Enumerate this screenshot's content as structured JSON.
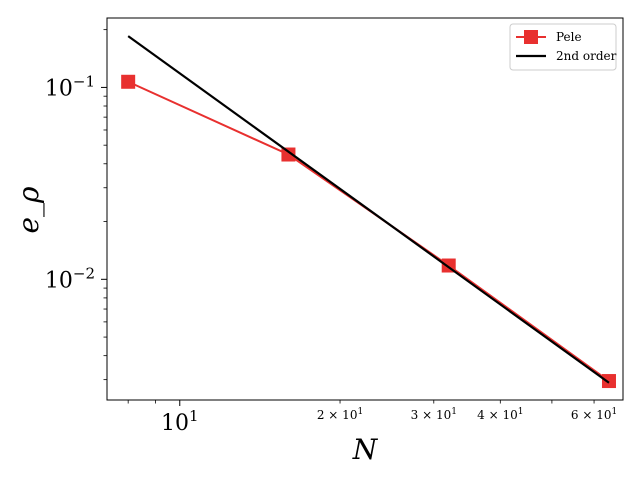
{
  "chart_data": {
    "type": "line",
    "xscale": "log",
    "yscale": "log",
    "xlim": [
      7.3,
      68
    ],
    "ylim": [
      0.00235,
      0.23
    ],
    "xlabel": "N",
    "ylabel": "e_ρ",
    "legend_position": "top-right",
    "grid": false,
    "x_major_ticks": [
      {
        "value": 10,
        "label": "10",
        "exp": "1"
      }
    ],
    "x_minor_ticks": [
      {
        "value": 20,
        "label": "2 × 10",
        "exp": "1"
      },
      {
        "value": 30,
        "label": "3 × 10",
        "exp": "1"
      },
      {
        "value": 40,
        "label": "4 × 10",
        "exp": "1"
      },
      {
        "value": 60,
        "label": "6 × 10",
        "exp": "1"
      },
      {
        "value": 8,
        "label": "",
        "exp": ""
      },
      {
        "value": 9,
        "label": "",
        "exp": ""
      },
      {
        "value": 50,
        "label": "",
        "exp": ""
      }
    ],
    "y_major_ticks": [
      {
        "value": 0.1,
        "label": "10",
        "exp": "−1"
      },
      {
        "value": 0.01,
        "label": "10",
        "exp": "−2"
      }
    ],
    "series": [
      {
        "name": "Pele",
        "color": "#e8302f",
        "marker": "square",
        "x": [
          8,
          16,
          32,
          64
        ],
        "y": [
          0.107,
          0.0447,
          0.0118,
          0.00295
        ]
      },
      {
        "name": "2nd order",
        "color": "#000000",
        "marker": "none",
        "x": [
          8,
          64
        ],
        "y": [
          0.185,
          0.00289
        ]
      }
    ]
  }
}
